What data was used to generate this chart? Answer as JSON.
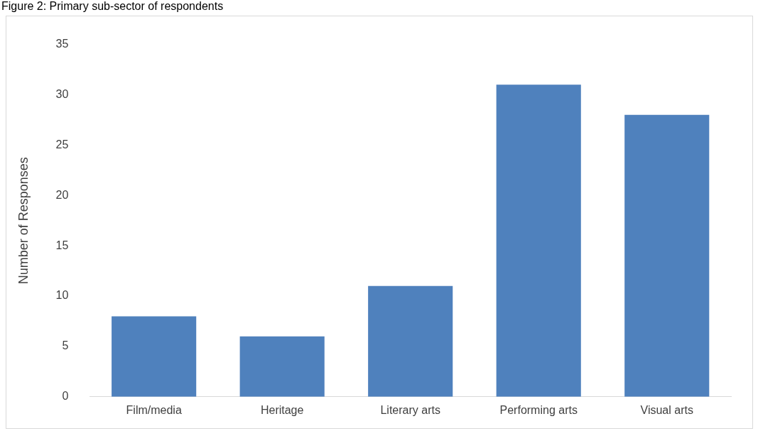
{
  "chart_data": {
    "type": "bar",
    "title": "Figure 2: Primary sub-sector of respondents",
    "ylabel": "Number of Responses",
    "categories": [
      "Film/media",
      "Heritage",
      "Literary arts",
      "Performing arts",
      "Visual arts"
    ],
    "values": [
      8,
      6,
      11,
      31,
      28
    ],
    "color": "#4f81bd",
    "ylim": [
      0,
      35
    ],
    "yticks": [
      0,
      5,
      10,
      15,
      20,
      25,
      30,
      35
    ],
    "grid": false,
    "legend": false
  }
}
